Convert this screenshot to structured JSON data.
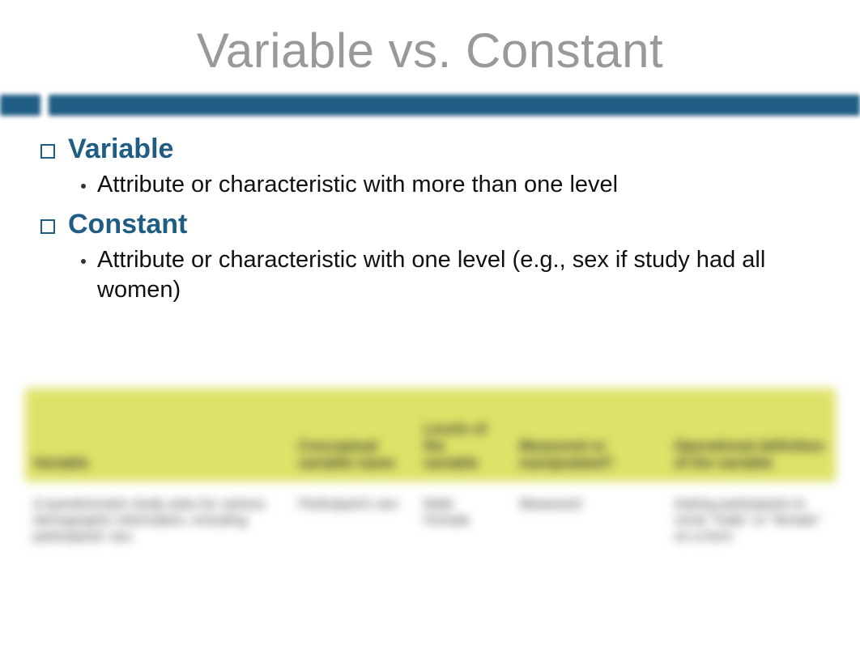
{
  "slide": {
    "title": "Variable vs. Constant",
    "accent_color": "#1f5d84",
    "title_color": "#999999",
    "background_color": "#ffffff",
    "title_fontsize": 60,
    "term_fontsize": 34,
    "definition_fontsize": 29,
    "items": [
      {
        "term": "Variable",
        "definition": "Attribute or characteristic with more than one level"
      },
      {
        "term": "Constant",
        "definition": "Attribute or characteristic with one level (e.g., sex if study had all women)"
      }
    ]
  },
  "table": {
    "blurred": true,
    "header_bg": "#dee268",
    "header_fontsize": 18,
    "cell_fontsize": 17,
    "columns": [
      {
        "label": "Variable",
        "width": "34%"
      },
      {
        "label": "Conceptual variable name",
        "width": "15%"
      },
      {
        "label": "Levels of the variable",
        "width": "11%"
      },
      {
        "label": "Measured or manipulated?",
        "width": "19%"
      },
      {
        "label": "Operational definition of the variable",
        "width": "21%"
      }
    ],
    "rows": [
      [
        "A questionnaire study asks for various demographic information, including participants' sex.",
        "Participant's sex",
        "Male Female",
        "Measured",
        "Asking participants to circle \"male\" or \"female\" on a form"
      ]
    ]
  }
}
